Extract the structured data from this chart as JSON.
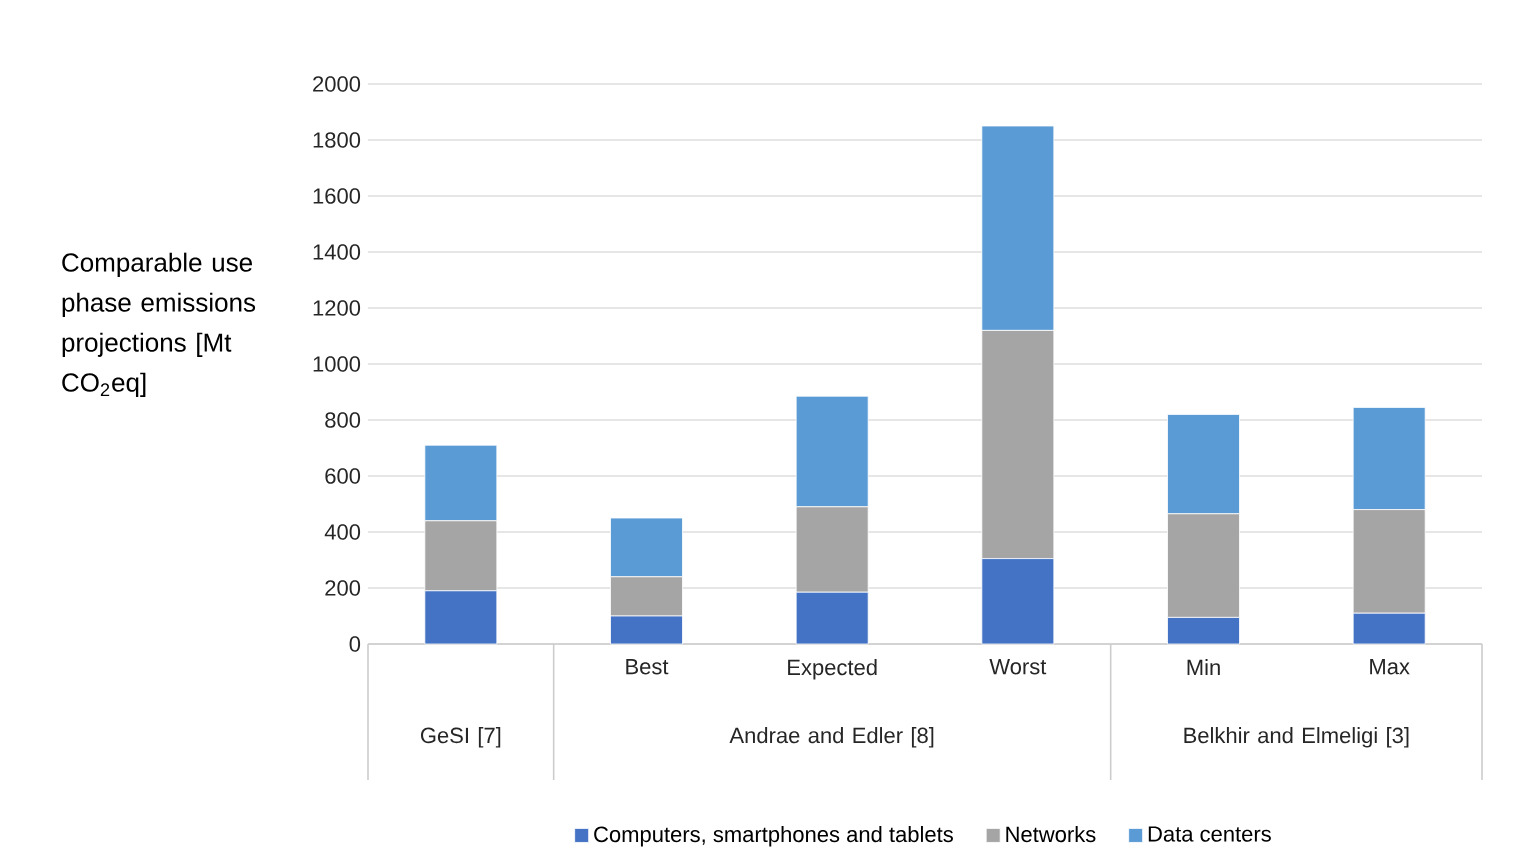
{
  "chart_data": {
    "type": "bar",
    "stacked": true,
    "ylabel": "Comparable use phase emissions projections [Mt CO$_{2}$eq]",
    "categories": [
      null,
      "Best",
      "Expected",
      "Worst",
      "Min",
      "Max"
    ],
    "series": [
      {
        "name": "Computers, smartphones and tablets",
        "color": "#4472c4",
        "values": [
          190,
          100,
          185,
          305,
          95,
          110
        ]
      },
      {
        "name": "Networks",
        "color": "#a5a5a5",
        "values": [
          250,
          140,
          305,
          815,
          370,
          370
        ]
      },
      {
        "name": "Data centers",
        "color": "#5b9bd5",
        "values": [
          270,
          210,
          395,
          730,
          355,
          365
        ]
      }
    ],
    "annotations": [
      "GeSI [7]",
      "Andrae and Edler [8]",
      "Belkhir and Elmeligi [3]"
    ],
    "ylim": [
      0,
      2000
    ],
    "yticks": [
      0,
      200,
      400,
      600,
      800,
      1000,
      1200,
      1400,
      1600,
      1800,
      2000
    ],
    "grid": "y",
    "legend": "bottom"
  }
}
